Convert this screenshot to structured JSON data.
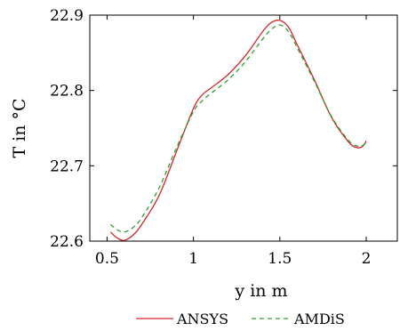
{
  "chart_data": {
    "type": "line",
    "xlabel": "y in m",
    "ylabel": "T in °C",
    "xlim": [
      0.4,
      2.18
    ],
    "ylim": [
      22.6,
      22.9
    ],
    "xticks": [
      0.5,
      1,
      1.5,
      2
    ],
    "yticks": [
      22.6,
      22.7,
      22.8,
      22.9
    ],
    "xtick_labels": [
      "0.5",
      "1",
      "1.5",
      "2"
    ],
    "ytick_labels": [
      "22.6",
      "22.7",
      "22.8",
      "22.9"
    ],
    "legend_position": "bottom-center",
    "series": [
      {
        "name": "ANSYS",
        "color": "#d62728",
        "dash": "solid",
        "x": [
          0.52,
          0.56,
          0.6,
          0.65,
          0.7,
          0.8,
          0.9,
          1.0,
          1.05,
          1.1,
          1.2,
          1.3,
          1.4,
          1.45,
          1.5,
          1.55,
          1.6,
          1.7,
          1.8,
          1.9,
          1.95,
          1.98,
          2.0
        ],
        "y": [
          22.612,
          22.604,
          22.601,
          22.608,
          22.622,
          22.66,
          22.718,
          22.776,
          22.794,
          22.803,
          22.821,
          22.846,
          22.878,
          22.89,
          22.893,
          22.884,
          22.861,
          22.814,
          22.764,
          22.731,
          22.724,
          22.726,
          22.733
        ]
      },
      {
        "name": "AMDiS",
        "color": "#2ca02c",
        "dash": "dashed",
        "x": [
          0.52,
          0.56,
          0.6,
          0.65,
          0.7,
          0.8,
          0.9,
          1.0,
          1.05,
          1.1,
          1.2,
          1.3,
          1.4,
          1.45,
          1.5,
          1.55,
          1.6,
          1.7,
          1.8,
          1.9,
          1.95,
          1.98,
          2.0
        ],
        "y": [
          22.622,
          22.615,
          22.612,
          22.618,
          22.631,
          22.67,
          22.723,
          22.772,
          22.786,
          22.796,
          22.814,
          22.838,
          22.868,
          22.881,
          22.887,
          22.878,
          22.857,
          22.812,
          22.765,
          22.733,
          22.726,
          22.727,
          22.731
        ]
      }
    ]
  }
}
